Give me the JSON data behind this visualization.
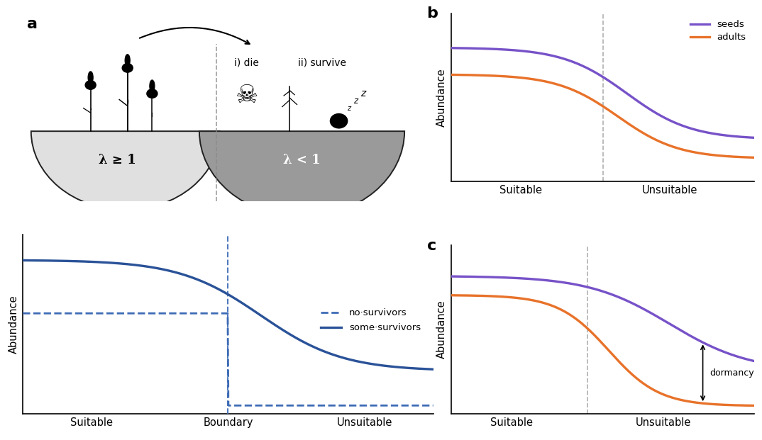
{
  "bg_color": "#ffffff",
  "panel_a_label": "a",
  "panel_b_label": "b",
  "panel_c_label": "c",
  "lambda_ge1": "λ ≥ 1",
  "lambda_lt1": "λ < 1",
  "suitable_label": "Suitable",
  "boundary_label": "Boundary",
  "unsuitable_label": "Unsuitable",
  "abundance_label": "Abundance",
  "no_survivors_label": "no·survivors",
  "some_survivors_label": "some·survivors",
  "seeds_label": "seeds",
  "adults_label": "adults",
  "dormancy_label": "dormancy",
  "die_label": "i) die",
  "survive_label": "ii) survive",
  "blue_dark": "#2a5298",
  "blue_mid": "#3d6bb5",
  "purple_color": "#7752c8",
  "orange_color": "#e8722a",
  "gray_dashed_color": "#b0b0b0",
  "light_bowl_color": "#e0e0e0",
  "dark_bowl_color": "#9a9a9a",
  "bowl_edge_color": "#222222"
}
